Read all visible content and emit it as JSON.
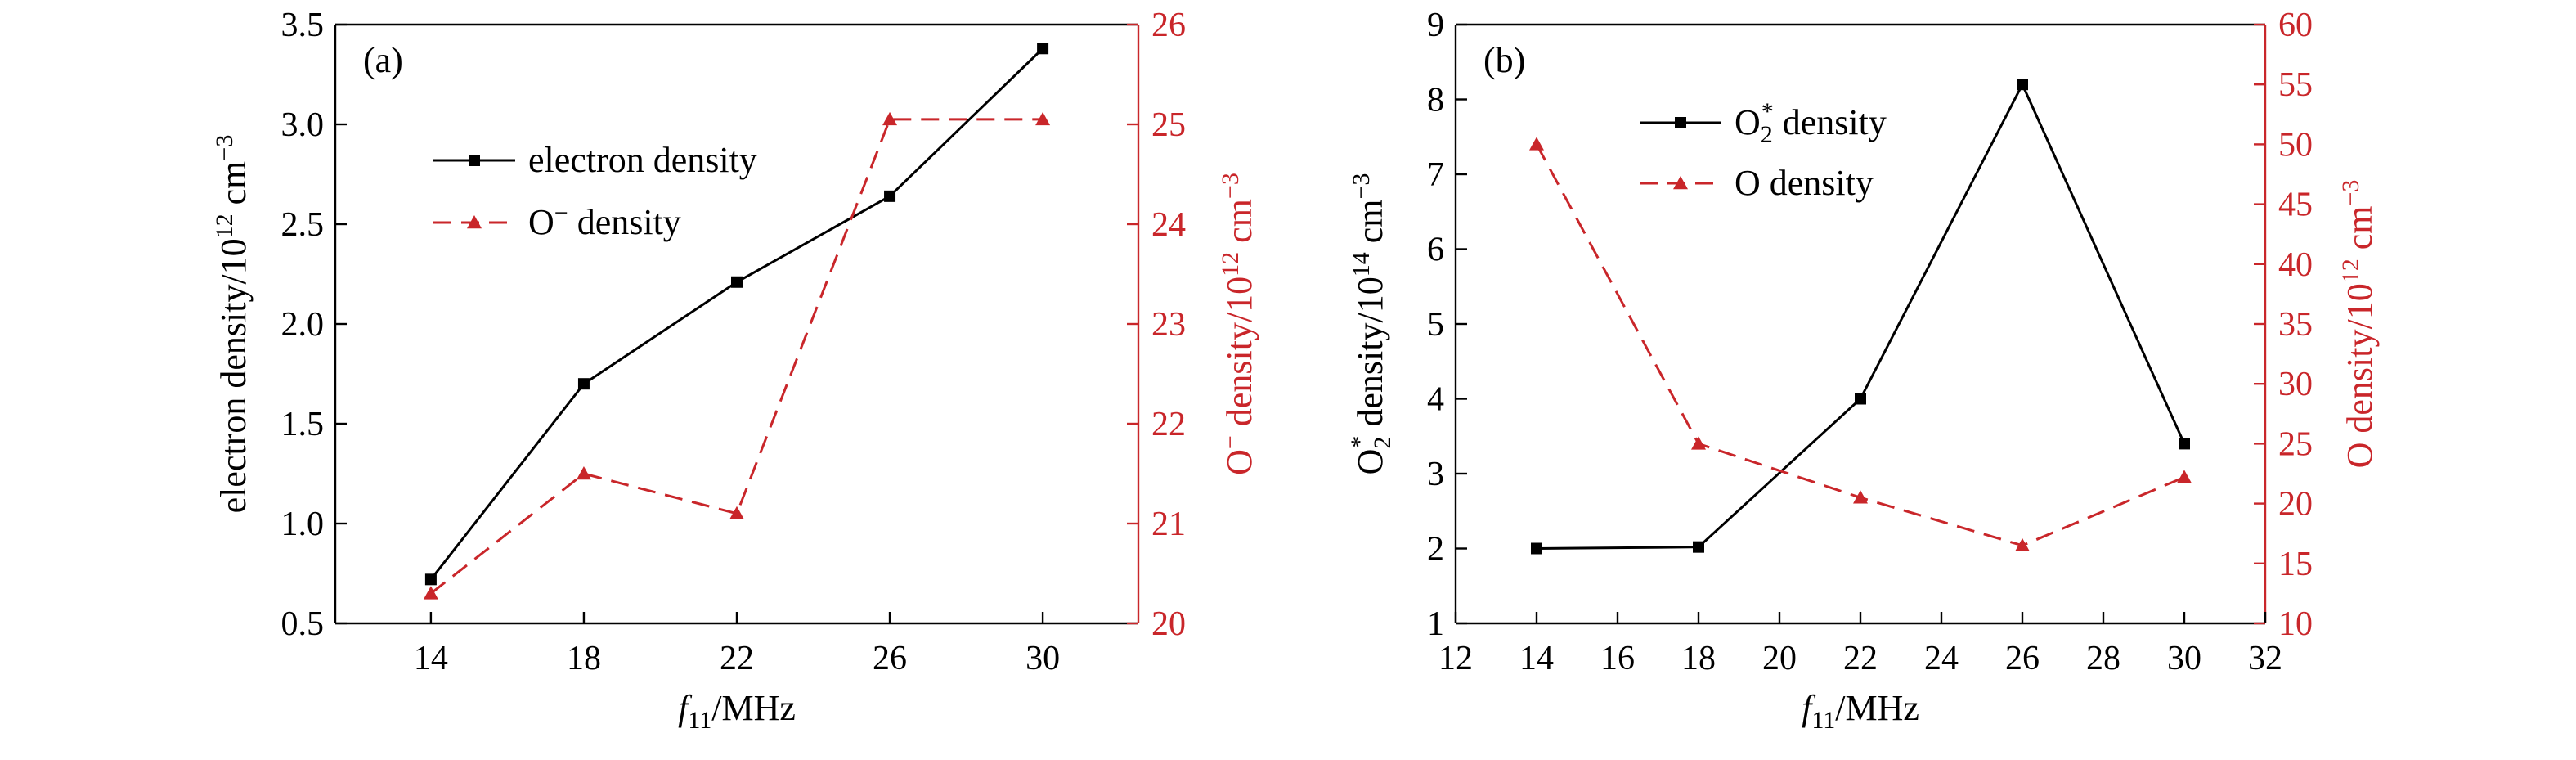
{
  "chart_data": [
    {
      "type": "line",
      "panel_label": "(a)",
      "x": [
        14,
        18,
        22,
        26,
        30
      ],
      "x_ticks": [
        "14",
        "18",
        "22",
        "26",
        "30"
      ],
      "xlim": [
        11.5,
        32.5
      ],
      "xlabel": {
        "main": "f",
        "sub": "11",
        "rest": "/MHz"
      },
      "y_left": {
        "lim": [
          0.5,
          3.5
        ],
        "ticks": [
          "0.5",
          "1.0",
          "1.5",
          "2.0",
          "2.5",
          "3.0",
          "3.5"
        ],
        "tick_values": [
          0.5,
          1.0,
          1.5,
          2.0,
          2.5,
          3.0,
          3.5
        ],
        "label": {
          "main": "electron density/10",
          "sup": "12",
          "rest": " cm",
          "sup2": "−3"
        },
        "color": "#000000"
      },
      "y_right": {
        "lim": [
          20,
          26
        ],
        "ticks": [
          "20",
          "21",
          "22",
          "23",
          "24",
          "25",
          "26"
        ],
        "tick_values": [
          20,
          21,
          22,
          23,
          24,
          25,
          26
        ],
        "label": {
          "main": "O",
          "sup": "−",
          "rest": " density/10",
          "sup2": "12",
          "rest2": " cm",
          "sup3": "−3"
        },
        "color": "#c9262a"
      },
      "series": [
        {
          "name": "electron density",
          "axis": "left",
          "marker": "square",
          "style": "solid",
          "color": "#000000",
          "values": [
            0.72,
            1.7,
            2.21,
            2.64,
            3.38
          ]
        },
        {
          "name": "O− density",
          "name_main": "O",
          "name_sup": "−",
          "name_rest": " density",
          "axis": "right",
          "marker": "triangle",
          "style": "dashed",
          "color": "#c9262a",
          "values": [
            20.3,
            21.5,
            21.1,
            25.05,
            25.05
          ]
        }
      ],
      "legend_placement": "upper-left",
      "grid": false
    },
    {
      "type": "line",
      "panel_label": "(b)",
      "x": [
        14,
        18,
        22,
        26,
        30
      ],
      "x_ticks": [
        "12",
        "14",
        "16",
        "18",
        "20",
        "22",
        "24",
        "26",
        "28",
        "30",
        "32"
      ],
      "x_tick_values": [
        12,
        14,
        16,
        18,
        20,
        22,
        24,
        26,
        28,
        30,
        32
      ],
      "xlim": [
        12,
        32
      ],
      "xlabel": {
        "main": "f",
        "sub": "11",
        "rest": "/MHz"
      },
      "y_left": {
        "lim": [
          1,
          9
        ],
        "ticks": [
          "1",
          "2",
          "3",
          "4",
          "5",
          "6",
          "7",
          "8",
          "9"
        ],
        "tick_values": [
          1,
          2,
          3,
          4,
          5,
          6,
          7,
          8,
          9
        ],
        "label": {
          "main": "O",
          "sub": "2",
          "sup": "*",
          "rest": " density/10",
          "sup2": "14",
          "rest2": " cm",
          "sup3": "−3"
        },
        "color": "#000000"
      },
      "y_right": {
        "lim": [
          10,
          60
        ],
        "ticks": [
          "10",
          "15",
          "20",
          "25",
          "30",
          "35",
          "40",
          "45",
          "50",
          "55",
          "60"
        ],
        "tick_values": [
          10,
          15,
          20,
          25,
          30,
          35,
          40,
          45,
          50,
          55,
          60
        ],
        "label": {
          "main": "O density/10",
          "sup": "12",
          "rest": " cm",
          "sup2": "−3"
        },
        "color": "#c9262a"
      },
      "series": [
        {
          "name": "O2* density",
          "name_main": "O",
          "name_sub": "2",
          "name_sup": "*",
          "name_rest": " density",
          "axis": "left",
          "marker": "square",
          "style": "solid",
          "color": "#000000",
          "values": [
            2.0,
            2.02,
            4.0,
            8.2,
            3.4
          ]
        },
        {
          "name": "O density",
          "axis": "right",
          "marker": "triangle",
          "style": "dashed",
          "color": "#c9262a",
          "values": [
            50.0,
            25.0,
            20.5,
            16.5,
            22.2
          ]
        }
      ],
      "legend_placement": "upper-center",
      "grid": false
    }
  ]
}
